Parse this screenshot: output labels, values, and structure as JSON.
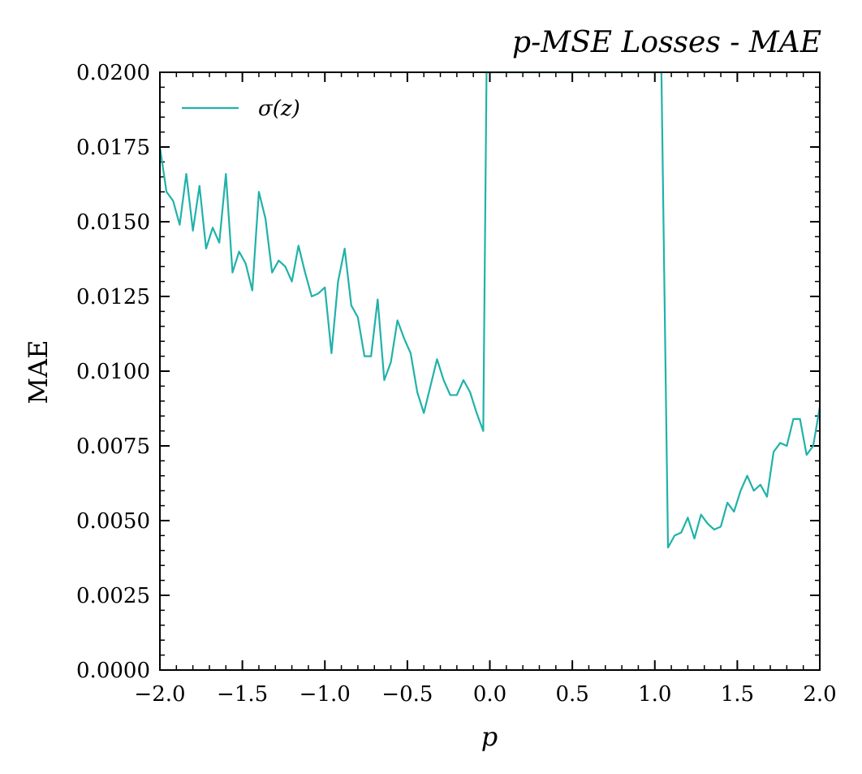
{
  "chart_data": {
    "type": "line",
    "title": "p-MSE Losses - MAE",
    "xlabel": "p",
    "ylabel": "MAE",
    "xlim": [
      -2.0,
      2.0
    ],
    "ylim": [
      0.0,
      0.02
    ],
    "xticks": [
      "−2.0",
      "−1.5",
      "−1.0",
      "−0.5",
      "0.0",
      "0.5",
      "1.0",
      "1.5",
      "2.0"
    ],
    "yticks": [
      "0.0000",
      "0.0025",
      "0.0050",
      "0.0075",
      "0.0100",
      "0.0125",
      "0.0150",
      "0.0175",
      "0.0200"
    ],
    "grid": false,
    "legend_position": "top-left",
    "series": [
      {
        "name": "σ(z)",
        "color": "#20b2aa",
        "x": [
          -2.0,
          -1.96,
          -1.92,
          -1.88,
          -1.84,
          -1.8,
          -1.76,
          -1.72,
          -1.68,
          -1.64,
          -1.6,
          -1.56,
          -1.52,
          -1.48,
          -1.44,
          -1.4,
          -1.36,
          -1.32,
          -1.28,
          -1.24,
          -1.2,
          -1.16,
          -1.12,
          -1.08,
          -1.04,
          -1.0,
          -0.96,
          -0.92,
          -0.88,
          -0.84,
          -0.8,
          -0.76,
          -0.72,
          -0.68,
          -0.64,
          -0.6,
          -0.56,
          -0.52,
          -0.48,
          -0.44,
          -0.4,
          -0.36,
          -0.32,
          -0.28,
          -0.24,
          -0.2,
          -0.16,
          -0.12,
          -0.08,
          -0.04,
          -0.02,
          1.04,
          1.08,
          1.12,
          1.16,
          1.2,
          1.24,
          1.28,
          1.32,
          1.36,
          1.4,
          1.44,
          1.48,
          1.52,
          1.56,
          1.6,
          1.64,
          1.68,
          1.72,
          1.76,
          1.8,
          1.84,
          1.88,
          1.92,
          1.96,
          2.0
        ],
        "y": [
          0.0175,
          0.016,
          0.0157,
          0.0149,
          0.0166,
          0.0147,
          0.0162,
          0.0141,
          0.0148,
          0.0143,
          0.0166,
          0.0133,
          0.014,
          0.0136,
          0.0127,
          0.016,
          0.0151,
          0.0133,
          0.0137,
          0.0135,
          0.013,
          0.0142,
          0.0133,
          0.0125,
          0.0126,
          0.0128,
          0.0106,
          0.013,
          0.0141,
          0.0122,
          0.0118,
          0.0105,
          0.0105,
          0.0124,
          0.0097,
          0.0103,
          0.0117,
          0.0111,
          0.0106,
          0.0093,
          0.0086,
          0.0095,
          0.0104,
          0.0097,
          0.0092,
          0.0092,
          0.0097,
          0.0093,
          0.0086,
          0.008,
          0.02,
          0.02,
          0.0041,
          0.0045,
          0.0046,
          0.0051,
          0.0044,
          0.0052,
          0.0049,
          0.0047,
          0.0048,
          0.0056,
          0.0053,
          0.006,
          0.0065,
          0.006,
          0.0062,
          0.0058,
          0.0073,
          0.0076,
          0.0075,
          0.0084,
          0.0084,
          0.0072,
          0.0075,
          0.0088
        ]
      }
    ]
  }
}
